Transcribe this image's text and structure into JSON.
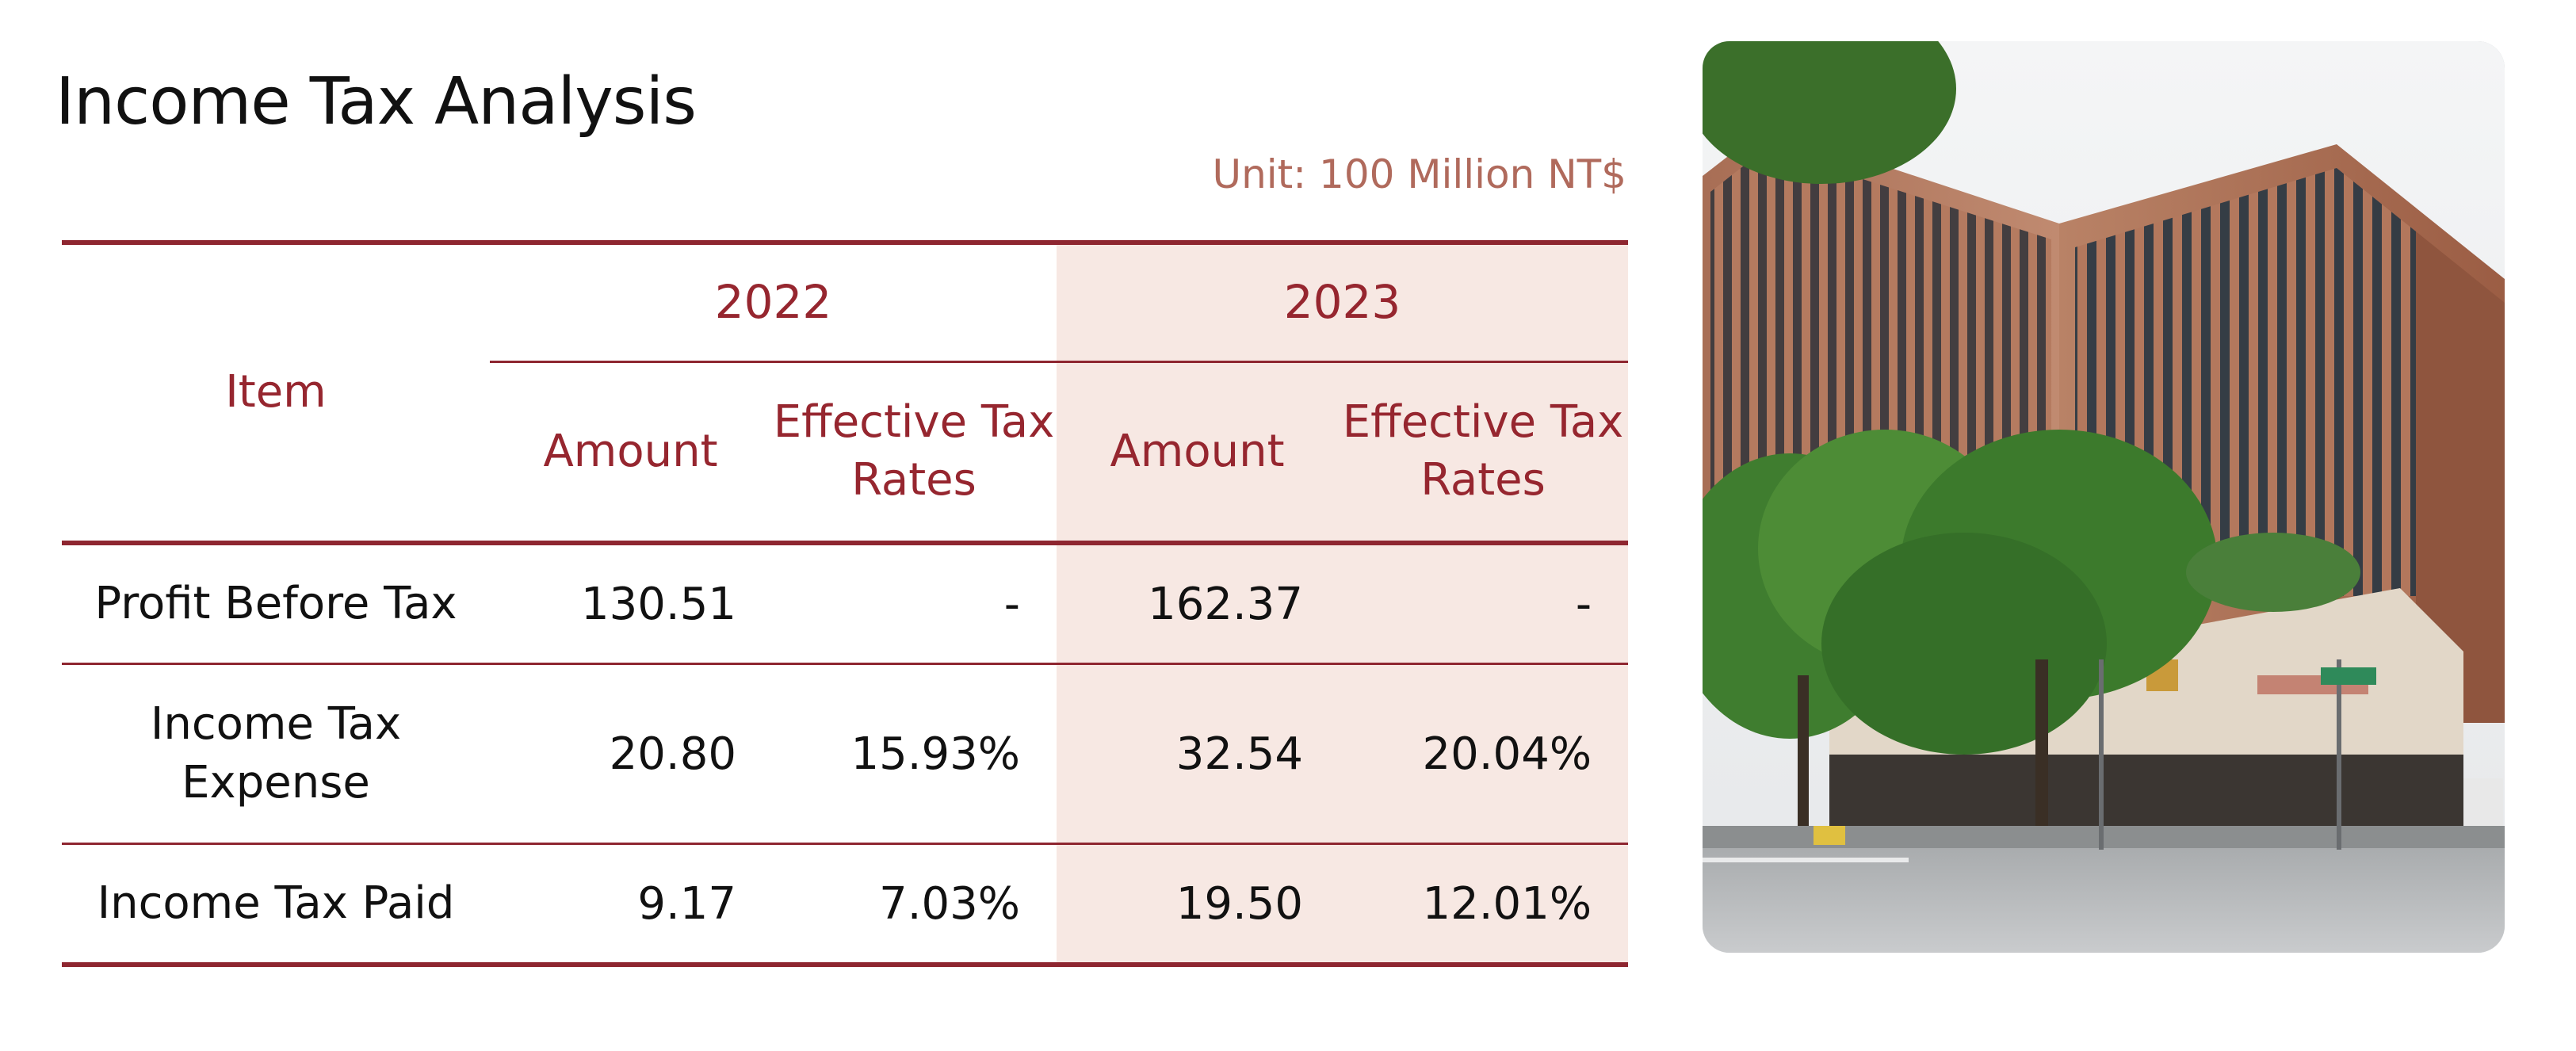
{
  "title": "Income Tax Analysis",
  "unit": "Unit: 100 Million NT$",
  "colors": {
    "accent": "#8e2630",
    "shade": "#f7e8e3",
    "unit_text": "#b06a5c"
  },
  "table": {
    "item_header": "Item",
    "years": [
      "2022",
      "2023"
    ],
    "sub_headers": {
      "amount": "Amount",
      "rate": "Effective Tax Rates"
    },
    "rows": [
      {
        "item": "Profit Before Tax",
        "a2022": "130.51",
        "r2022": "-",
        "a2023": "162.37",
        "r2023": "-"
      },
      {
        "item": "Income Tax Expense",
        "a2022": "20.80",
        "r2022": "15.93%",
        "a2023": "32.54",
        "r2023": "20.04%"
      },
      {
        "item": "Income Tax Paid",
        "a2022": "9.17",
        "r2022": "7.03%",
        "a2023": "19.50",
        "r2023": "12.01%"
      }
    ]
  },
  "image": {
    "icon": "office-building-photo"
  }
}
